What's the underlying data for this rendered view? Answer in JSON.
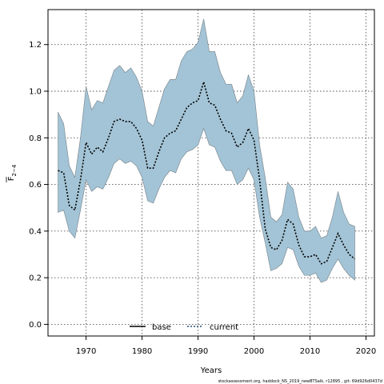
{
  "chart_data": {
    "type": "area",
    "xlabel": "Years",
    "ylabel_main": "F",
    "ylabel_sub": "2−4",
    "xlim": [
      1963.2,
      2021.5
    ],
    "ylim": [
      -0.05,
      1.35
    ],
    "x_ticks": [
      1970,
      1980,
      1990,
      2000,
      2010,
      2020
    ],
    "y_ticks": [
      0.0,
      0.2,
      0.4,
      0.6,
      0.8,
      1.0,
      1.2
    ],
    "y_tick_labels": [
      "0.0",
      "0.2",
      "0.4",
      "0.6",
      "0.8",
      "1.0",
      "1.2"
    ],
    "grid": true,
    "legend_position": "bottom",
    "legend": [
      {
        "label": "base",
        "style": "solid",
        "color": "#000000"
      },
      {
        "label": "current",
        "style": "dotted",
        "color": "#1f4e79"
      }
    ],
    "band_color": "#a3c4d6",
    "x": [
      1965,
      1966,
      1967,
      1968,
      1969,
      1970,
      1971,
      1972,
      1973,
      1974,
      1975,
      1976,
      1977,
      1978,
      1979,
      1980,
      1981,
      1982,
      1983,
      1984,
      1985,
      1986,
      1987,
      1988,
      1989,
      1990,
      1991,
      1992,
      1993,
      1994,
      1995,
      1996,
      1997,
      1998,
      1999,
      2000,
      2001,
      2002,
      2003,
      2004,
      2005,
      2006,
      2007,
      2008,
      2009,
      2010,
      2011,
      2012,
      2013,
      2014,
      2015,
      2016,
      2017,
      2018
    ],
    "series": [
      {
        "name": "current",
        "values": [
          0.66,
          0.65,
          0.51,
          0.49,
          0.62,
          0.78,
          0.73,
          0.76,
          0.74,
          0.8,
          0.87,
          0.88,
          0.87,
          0.87,
          0.84,
          0.79,
          0.67,
          0.67,
          0.74,
          0.8,
          0.82,
          0.83,
          0.88,
          0.93,
          0.95,
          0.96,
          1.04,
          0.95,
          0.94,
          0.88,
          0.83,
          0.82,
          0.76,
          0.78,
          0.84,
          0.79,
          0.62,
          0.41,
          0.33,
          0.32,
          0.36,
          0.45,
          0.43,
          0.34,
          0.29,
          0.29,
          0.3,
          0.26,
          0.27,
          0.33,
          0.39,
          0.34,
          0.3,
          0.28
        ]
      }
    ],
    "band_upper": [
      0.91,
      0.86,
      0.68,
      0.63,
      0.8,
      1.02,
      0.92,
      0.96,
      0.95,
      1.02,
      1.09,
      1.11,
      1.08,
      1.1,
      1.06,
      1.0,
      0.87,
      0.85,
      0.93,
      1.01,
      1.05,
      1.05,
      1.13,
      1.17,
      1.18,
      1.21,
      1.31,
      1.17,
      1.17,
      1.08,
      1.03,
      1.03,
      0.95,
      0.98,
      1.07,
      1.0,
      0.77,
      0.63,
      0.46,
      0.44,
      0.47,
      0.61,
      0.58,
      0.46,
      0.4,
      0.4,
      0.42,
      0.37,
      0.38,
      0.46,
      0.57,
      0.48,
      0.43,
      0.42
    ],
    "band_lower": [
      0.48,
      0.49,
      0.4,
      0.37,
      0.49,
      0.62,
      0.57,
      0.59,
      0.58,
      0.63,
      0.69,
      0.71,
      0.69,
      0.7,
      0.68,
      0.63,
      0.53,
      0.52,
      0.58,
      0.63,
      0.66,
      0.65,
      0.71,
      0.74,
      0.75,
      0.77,
      0.84,
      0.77,
      0.76,
      0.7,
      0.66,
      0.66,
      0.6,
      0.62,
      0.67,
      0.62,
      0.46,
      0.35,
      0.23,
      0.24,
      0.26,
      0.33,
      0.32,
      0.25,
      0.21,
      0.21,
      0.22,
      0.18,
      0.19,
      0.24,
      0.28,
      0.24,
      0.21,
      0.19
    ]
  },
  "footnote": "stockassessment.org,  haddock_NS_2019_newBTSalk,  r12895 ,  git:  69d926d0437d"
}
